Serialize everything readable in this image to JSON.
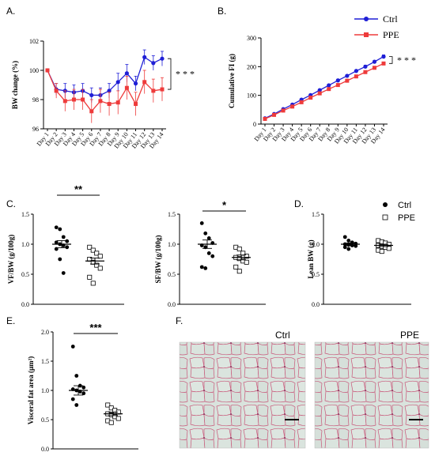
{
  "panels": {
    "A": {
      "letter": "A."
    },
    "B": {
      "letter": "B."
    },
    "C": {
      "letter": "C."
    },
    "D": {
      "letter": "D."
    },
    "E": {
      "letter": "E."
    },
    "F": {
      "letter": "F."
    }
  },
  "legend_B": {
    "ctrl": "Ctrl",
    "ppe": "PPE"
  },
  "legend_D": {
    "ctrl": "Ctrl",
    "ppe": "PPE"
  },
  "histology": {
    "left_label": "Ctrl",
    "right_label": "PPE"
  },
  "colors": {
    "ctrl": "#1f1fd6",
    "ppe": "#ee3b3b",
    "axis": "#000000",
    "tissue_bg": "#d8e2dc",
    "tissue_edge": "#c8587a"
  },
  "chart_data": [
    {
      "id": "A",
      "type": "line",
      "ylabel": "BW change (%)",
      "ylim": [
        96,
        102
      ],
      "yticks": [
        96,
        98,
        100,
        102
      ],
      "categories": [
        "Day 1",
        "Day 2",
        "Day 3",
        "Day 4",
        "Day 5",
        "Day 6",
        "Day 7",
        "Day 8",
        "Day 9",
        "Day 10",
        "Day 11",
        "Day 12",
        "Day 13",
        "Day 14"
      ],
      "series": [
        {
          "name": "Ctrl",
          "values": [
            100,
            98.7,
            98.6,
            98.5,
            98.6,
            98.3,
            98.3,
            98.6,
            99.2,
            99.8,
            99.1,
            100.9,
            100.5,
            100.8
          ],
          "err": [
            0,
            0.4,
            0.5,
            0.5,
            0.5,
            0.5,
            0.5,
            0.5,
            0.6,
            0.6,
            0.5,
            0.5,
            0.5,
            0.5
          ]
        },
        {
          "name": "PPE",
          "values": [
            100,
            98.6,
            97.9,
            98.0,
            98.0,
            97.2,
            97.9,
            97.7,
            97.8,
            98.8,
            97.7,
            99.2,
            98.6,
            98.7
          ],
          "err": [
            0,
            0.5,
            0.7,
            0.7,
            0.7,
            0.8,
            0.8,
            0.8,
            0.8,
            0.8,
            0.8,
            0.8,
            0.8,
            0.8
          ]
        }
      ],
      "significance": "* * *"
    },
    {
      "id": "B",
      "type": "line",
      "ylabel": "Cumulative FI (g)",
      "ylim": [
        0,
        300
      ],
      "yticks": [
        0,
        100,
        200,
        300
      ],
      "categories": [
        "Day 1",
        "Day 2",
        "Day 3",
        "Day 4",
        "Day 5",
        "Day 6",
        "Day 7",
        "Day 8",
        "Day 9",
        "Day 10",
        "Day 11",
        "Day 12",
        "Day 13",
        "Day 14"
      ],
      "series": [
        {
          "name": "Ctrl",
          "values": [
            20,
            35,
            52,
            68,
            85,
            101,
            118,
            135,
            152,
            168,
            185,
            200,
            217,
            235
          ],
          "err": [
            2,
            2,
            3,
            3,
            3,
            3,
            3,
            4,
            4,
            4,
            4,
            5,
            5,
            6
          ]
        },
        {
          "name": "PPE",
          "values": [
            18,
            32,
            47,
            61,
            76,
            92,
            107,
            122,
            136,
            151,
            166,
            181,
            196,
            211
          ],
          "err": [
            2,
            2,
            2,
            3,
            3,
            3,
            3,
            3,
            3,
            4,
            4,
            4,
            4,
            4
          ]
        }
      ],
      "significance": "* * *"
    },
    {
      "id": "C1",
      "type": "scatter",
      "ylabel": "VF/BW (g/100g)",
      "ylim": [
        0,
        1.5
      ],
      "yticks": [
        0.0,
        0.5,
        1.0,
        1.5
      ],
      "groups": [
        {
          "name": "Ctrl",
          "values": [
            1.28,
            1.25,
            1.12,
            1.05,
            1.03,
            1.0,
            0.98,
            0.95,
            0.92,
            0.75,
            0.52
          ],
          "mean": 1.0,
          "sem": 0.06
        },
        {
          "name": "PPE",
          "values": [
            0.95,
            0.9,
            0.85,
            0.8,
            0.75,
            0.7,
            0.65,
            0.6,
            0.45,
            0.35
          ],
          "mean": 0.72,
          "sem": 0.05
        }
      ],
      "significance": "**"
    },
    {
      "id": "C2",
      "type": "scatter",
      "ylabel": "SF/BW (g/100g)",
      "ylim": [
        0,
        1.5
      ],
      "yticks": [
        0.0,
        0.5,
        1.0,
        1.5
      ],
      "groups": [
        {
          "name": "Ctrl",
          "values": [
            1.35,
            1.18,
            1.1,
            1.02,
            0.98,
            0.95,
            0.85,
            0.8,
            0.62,
            0.6
          ],
          "mean": 1.0,
          "sem": 0.07
        },
        {
          "name": "PPE",
          "values": [
            0.95,
            0.92,
            0.85,
            0.8,
            0.78,
            0.76,
            0.72,
            0.7,
            0.62,
            0.55
          ],
          "mean": 0.78,
          "sem": 0.04
        }
      ],
      "significance": "*"
    },
    {
      "id": "D",
      "type": "scatter",
      "ylabel": "Lean BW (g)",
      "ylim": [
        0,
        1.5
      ],
      "yticks": [
        0.0,
        0.5,
        1.0,
        1.5
      ],
      "groups": [
        {
          "name": "Ctrl",
          "values": [
            1.12,
            1.06,
            1.03,
            1.01,
            1.0,
            0.99,
            0.98,
            0.97,
            0.95,
            0.92
          ],
          "mean": 1.0,
          "sem": 0.02
        },
        {
          "name": "PPE",
          "values": [
            1.06,
            1.04,
            1.02,
            1.0,
            0.98,
            0.96,
            0.95,
            0.93,
            0.9,
            0.88
          ],
          "mean": 0.98,
          "sem": 0.02
        }
      ],
      "significance": ""
    },
    {
      "id": "E",
      "type": "scatter",
      "ylabel": "Visceral fat area (μm²)",
      "ylim": [
        0,
        2.0
      ],
      "yticks": [
        0.0,
        0.5,
        1.0,
        1.5,
        2.0
      ],
      "groups": [
        {
          "name": "Ctrl",
          "values": [
            1.75,
            1.25,
            1.08,
            1.05,
            1.02,
            1.0,
            0.98,
            0.95,
            0.85,
            0.75
          ],
          "mean": 1.0,
          "sem": 0.08
        },
        {
          "name": "PPE",
          "values": [
            0.75,
            0.7,
            0.66,
            0.63,
            0.6,
            0.58,
            0.55,
            0.52,
            0.48,
            0.45
          ],
          "mean": 0.6,
          "sem": 0.03
        }
      ],
      "significance": "***"
    }
  ]
}
